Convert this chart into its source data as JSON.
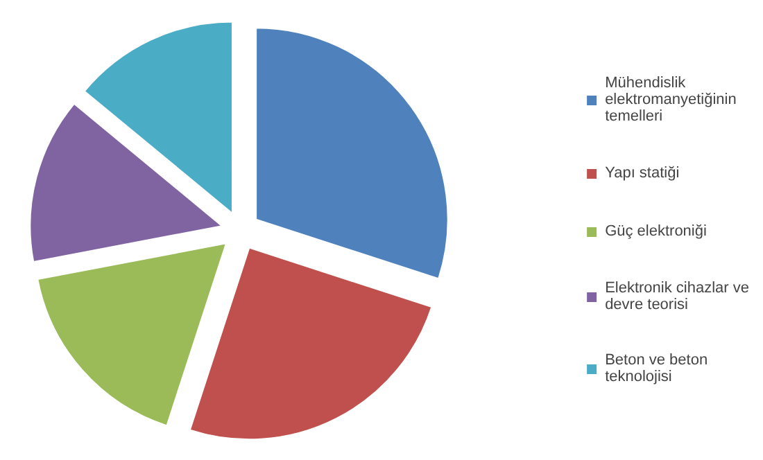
{
  "chart_data": {
    "type": "pie",
    "categories": [
      "Mühendislik elektromanyetiğinin temelleri",
      "Yapı statiği",
      "Güç elektroniği",
      "Elektronik cihazlar ve devre teorisi",
      "Beton ve beton teknolojisi"
    ],
    "values": [
      30,
      25,
      17,
      14,
      14
    ],
    "colors": [
      "#4f81bd",
      "#c0504d",
      "#9bbb59",
      "#8064a2",
      "#4bacc6"
    ],
    "legend": "right"
  }
}
